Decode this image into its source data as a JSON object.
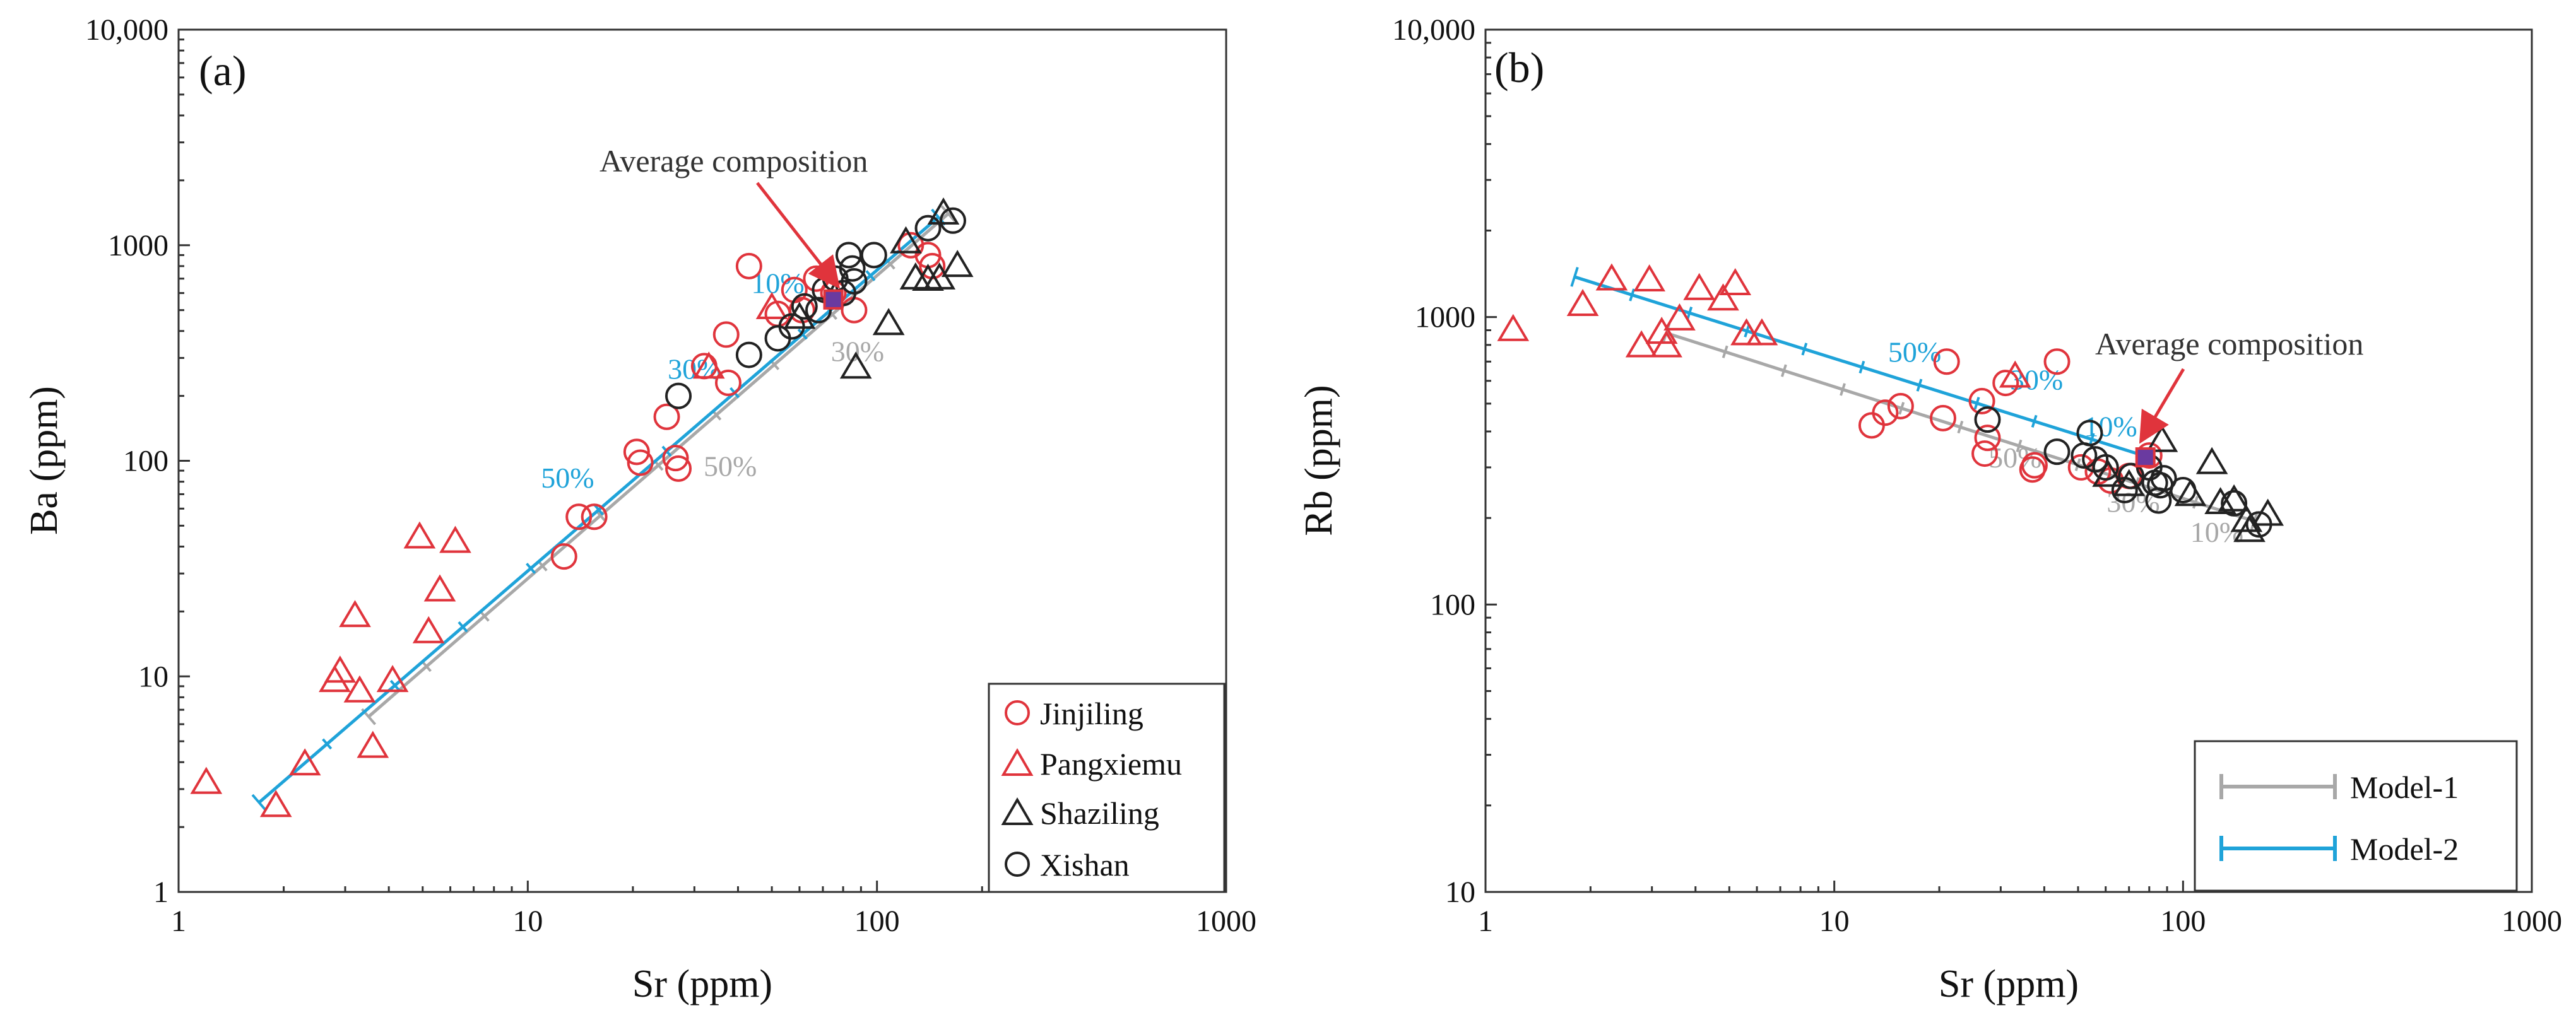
{
  "colors": {
    "jinjiling": "#e0343c",
    "pangxiemu": "#e0343c",
    "shaziling": "#222222",
    "xishan": "#222222",
    "model1": "#a8a8a8",
    "model2": "#1fa3d9",
    "arrow": "#e0343c",
    "avg_marker": "#6a3aa0"
  },
  "chart_data": [
    {
      "type": "scatter",
      "panel_label": "(a)",
      "xlabel": "Sr (ppm)",
      "ylabel": "Ba (ppm)",
      "xscale": "log",
      "yscale": "log",
      "xlim": [
        1,
        1000
      ],
      "ylim": [
        1,
        10000
      ],
      "x_ticks": [
        1,
        10,
        100,
        1000
      ],
      "x_tick_labels": [
        "1",
        "10",
        "100",
        "1000"
      ],
      "y_ticks": [
        1,
        10,
        100,
        1000,
        10000
      ],
      "y_tick_labels": [
        "1",
        "10",
        "100",
        "1000",
        "10,000"
      ],
      "annotation": {
        "text": "Average composition",
        "x": 75,
        "y": 560
      },
      "legend": {
        "placement": "bottom-right",
        "entries": [
          {
            "label": "Jinjiling",
            "marker": "circle",
            "color_key": "jinjiling"
          },
          {
            "label": "Pangxiemu",
            "marker": "triangle",
            "color_key": "pangxiemu"
          },
          {
            "label": "Shaziling",
            "marker": "triangle",
            "color_key": "shaziling"
          },
          {
            "label": "Xishan",
            "marker": "circle",
            "color_key": "xishan"
          }
        ]
      },
      "models": [
        {
          "name": "Model-1",
          "color_key": "model1",
          "start": [
            160,
            1400
          ],
          "end": [
            3.5,
            6.5
          ],
          "labels": [
            {
              "text": "30%",
              "x": 88,
              "y": 290
            },
            {
              "text": "50%",
              "x": 38,
              "y": 85
            }
          ]
        },
        {
          "name": "Model-2",
          "color_key": "model2",
          "start": [
            150,
            1350
          ],
          "end": [
            1.7,
            2.6
          ],
          "labels": [
            {
              "text": "10%",
              "x": 52,
              "y": 600
            },
            {
              "text": "30%",
              "x": 30,
              "y": 240
            },
            {
              "text": "50%",
              "x": 13,
              "y": 75
            }
          ]
        }
      ],
      "series": [
        {
          "name": "Jinjiling",
          "marker": "circle",
          "color_key": "jinjiling",
          "points": [
            [
              12.7,
              36
            ],
            [
              14,
              55
            ],
            [
              15.5,
              55
            ],
            [
              20.5,
              110
            ],
            [
              21,
              98
            ],
            [
              25,
              160
            ],
            [
              26.5,
              103
            ],
            [
              27,
              92
            ],
            [
              32,
              275
            ],
            [
              37,
              385
            ],
            [
              37.5,
              230
            ],
            [
              43,
              800
            ],
            [
              52,
              480
            ],
            [
              58,
              620
            ],
            [
              61,
              500
            ],
            [
              67,
              700
            ],
            [
              75,
              600
            ],
            [
              86,
              500
            ],
            [
              125,
              1000
            ],
            [
              140,
              900
            ],
            [
              144,
              800
            ]
          ]
        },
        {
          "name": "Pangxiemu",
          "marker": "triangle",
          "color_key": "pangxiemu",
          "points": [
            [
              1.2,
              3.2
            ],
            [
              1.9,
              2.5
            ],
            [
              2.3,
              3.9
            ],
            [
              2.8,
              9.5
            ],
            [
              2.9,
              10.5
            ],
            [
              3.2,
              19
            ],
            [
              3.3,
              8.5
            ],
            [
              3.6,
              4.7
            ],
            [
              4.1,
              9.5
            ],
            [
              4.9,
              44
            ],
            [
              5.2,
              16
            ],
            [
              5.6,
              25
            ],
            [
              6.2,
              42
            ],
            [
              33,
              270
            ],
            [
              50,
              510
            ]
          ]
        },
        {
          "name": "Shaziling",
          "marker": "triangle",
          "color_key": "shaziling",
          "points": [
            [
              60,
              460
            ],
            [
              87,
              270
            ],
            [
              108,
              430
            ],
            [
              121,
              1030
            ],
            [
              129,
              700
            ],
            [
              140,
              690
            ],
            [
              151,
              700
            ],
            [
              155,
              1400
            ],
            [
              170,
              800
            ]
          ]
        },
        {
          "name": "Xishan",
          "marker": "circle",
          "color_key": "xishan",
          "points": [
            [
              27,
              200
            ],
            [
              43,
              310
            ],
            [
              52,
              370
            ],
            [
              57,
              420
            ],
            [
              62,
              520
            ],
            [
              68,
              500
            ],
            [
              71,
              620
            ],
            [
              76,
              700
            ],
            [
              80,
              600
            ],
            [
              83,
              900
            ],
            [
              85,
              780
            ],
            [
              86,
              680
            ],
            [
              98,
              900
            ],
            [
              140,
              1200
            ],
            [
              165,
              1300
            ]
          ]
        }
      ]
    },
    {
      "type": "scatter",
      "panel_label": "(b)",
      "xlabel": "Sr (ppm)",
      "ylabel": "Rb (ppm)",
      "xscale": "log",
      "yscale": "log",
      "xlim": [
        1,
        1000
      ],
      "ylim": [
        10,
        10000
      ],
      "x_ticks": [
        1,
        10,
        100,
        1000
      ],
      "x_tick_labels": [
        "1",
        "10",
        "100",
        "1000"
      ],
      "y_ticks": [
        10,
        100,
        1000,
        10000
      ],
      "y_tick_labels": [
        "10",
        "100",
        "1000",
        "10,000"
      ],
      "annotation": {
        "text": "Average composition",
        "x": 78,
        "y": 325
      },
      "legend": {
        "placement": "bottom-right",
        "entries": [
          {
            "label": "Model-1",
            "color_key": "model1"
          },
          {
            "label": "Model-2",
            "color_key": "model2"
          }
        ]
      },
      "models": [
        {
          "name": "Model-1",
          "color_key": "model1",
          "start": [
            160,
            195
          ],
          "end": [
            3.3,
            880
          ],
          "labels": [
            {
              "text": "10%",
              "x": 125,
              "y": 165
            },
            {
              "text": "30%",
              "x": 72,
              "y": 210
            },
            {
              "text": "50%",
              "x": 33,
              "y": 300
            }
          ]
        },
        {
          "name": "Model-2",
          "color_key": "model2",
          "start": [
            80,
            325
          ],
          "end": [
            1.8,
            1380
          ],
          "labels": [
            {
              "text": "10%",
              "x": 62,
              "y": 385
            },
            {
              "text": "30%",
              "x": 38,
              "y": 560
            },
            {
              "text": "50%",
              "x": 17,
              "y": 700
            }
          ]
        }
      ],
      "series": [
        {
          "name": "Jinjiling",
          "marker": "circle",
          "color_key": "jinjiling",
          "points": [
            [
              12.8,
              420
            ],
            [
              14,
              465
            ],
            [
              15.5,
              490
            ],
            [
              20.5,
              445
            ],
            [
              21,
              700
            ],
            [
              26.5,
              510
            ],
            [
              27,
              335
            ],
            [
              27.5,
              380
            ],
            [
              31,
              590
            ],
            [
              37,
              295
            ],
            [
              37.5,
              305
            ],
            [
              43.5,
              700
            ],
            [
              51,
              300
            ],
            [
              57,
              290
            ],
            [
              62,
              270
            ],
            [
              70,
              280
            ],
            [
              80,
              330
            ]
          ]
        },
        {
          "name": "Pangxiemu",
          "marker": "triangle",
          "color_key": "pangxiemu",
          "points": [
            [
              1.2,
              900
            ],
            [
              1.9,
              1100
            ],
            [
              2.3,
              1350
            ],
            [
              2.8,
              790
            ],
            [
              2.95,
              1340
            ],
            [
              3.2,
              880
            ],
            [
              3.3,
              790
            ],
            [
              3.6,
              980
            ],
            [
              4.1,
              1250
            ],
            [
              4.8,
              1150
            ],
            [
              5.2,
              1300
            ],
            [
              5.6,
              870
            ],
            [
              6.2,
              870
            ],
            [
              33,
              620
            ]
          ]
        },
        {
          "name": "Shaziling",
          "marker": "triangle",
          "color_key": "shaziling",
          "points": [
            [
              61,
              280
            ],
            [
              70,
              260
            ],
            [
              87,
              370
            ],
            [
              105,
              240
            ],
            [
              121,
              310
            ],
            [
              128,
              225
            ],
            [
              140,
              230
            ],
            [
              152,
              195
            ],
            [
              155,
              180
            ],
            [
              175,
              205
            ]
          ]
        },
        {
          "name": "Xishan",
          "marker": "circle",
          "color_key": "xishan",
          "points": [
            [
              27.5,
              440
            ],
            [
              43.5,
              340
            ],
            [
              52,
              330
            ],
            [
              54,
              395
            ],
            [
              56,
              320
            ],
            [
              60,
              300
            ],
            [
              68,
              250
            ],
            [
              71,
              280
            ],
            [
              80,
              300
            ],
            [
              83,
              265
            ],
            [
              85,
              230
            ],
            [
              86,
              260
            ],
            [
              88,
              275
            ],
            [
              100,
              250
            ],
            [
              140,
              225
            ],
            [
              165,
              190
            ]
          ]
        }
      ]
    }
  ]
}
